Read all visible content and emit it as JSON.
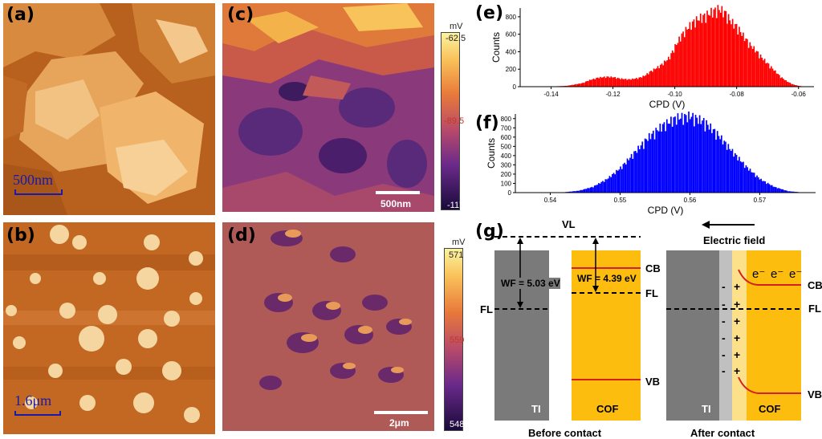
{
  "panels": {
    "a": {
      "label": "(a)",
      "scale": "500nm"
    },
    "b": {
      "label": "(b)",
      "scale": "1.6μm"
    },
    "c": {
      "label": "(c)",
      "scale": "500nm",
      "unit": "mV",
      "cb_top": "-62.5",
      "cb_mid": "-89.5",
      "cb_bot": "-117"
    },
    "d": {
      "label": "(d)",
      "scale": "2μm",
      "unit": "mV",
      "cb_top": "571",
      "cb_mid": "559",
      "cb_bot": "548"
    },
    "e": {
      "label": "(e)"
    },
    "f": {
      "label": "(f)"
    },
    "g": {
      "label": "(g)"
    }
  },
  "chart_data": [
    {
      "type": "bar",
      "panel": "e",
      "color": "#ff0000",
      "xlabel": "CPD (V)",
      "ylabel": "Counts",
      "xlim": [
        -0.15,
        -0.055
      ],
      "ylim": [
        0,
        900
      ],
      "xticks": [
        "-0.14",
        "-0.12",
        "-0.10",
        "-0.08",
        "-0.06"
      ],
      "yticks": [
        "0",
        "200",
        "400",
        "600",
        "800"
      ],
      "x": [
        -0.145,
        -0.14,
        -0.135,
        -0.13,
        -0.128,
        -0.125,
        -0.122,
        -0.12,
        -0.118,
        -0.115,
        -0.112,
        -0.11,
        -0.108,
        -0.105,
        -0.102,
        -0.1,
        -0.098,
        -0.096,
        -0.094,
        -0.092,
        -0.09,
        -0.088,
        -0.086,
        -0.084,
        -0.082,
        -0.08,
        -0.078,
        -0.076,
        -0.074,
        -0.072,
        -0.07,
        -0.068,
        -0.066,
        -0.064,
        -0.062,
        -0.06,
        -0.058
      ],
      "values": [
        0,
        2,
        10,
        40,
        70,
        100,
        110,
        105,
        90,
        80,
        95,
        120,
        170,
        230,
        320,
        450,
        570,
        650,
        720,
        760,
        790,
        830,
        860,
        820,
        720,
        660,
        560,
        470,
        400,
        320,
        250,
        180,
        110,
        60,
        25,
        8,
        2
      ]
    },
    {
      "type": "bar",
      "panel": "f",
      "color": "#0000ff",
      "xlabel": "CPD (V)",
      "ylabel": "Counts",
      "xlim": [
        0.535,
        0.578
      ],
      "ylim": [
        0,
        850
      ],
      "xticks": [
        "0.54",
        "0.55",
        "0.56",
        "0.57"
      ],
      "yticks": [
        "0",
        "100",
        "200",
        "300",
        "400",
        "500",
        "600",
        "700",
        "800"
      ],
      "x": [
        0.54,
        0.542,
        0.544,
        0.546,
        0.548,
        0.55,
        0.552,
        0.554,
        0.556,
        0.558,
        0.56,
        0.562,
        0.564,
        0.566,
        0.568,
        0.57,
        0.572,
        0.574,
        0.576
      ],
      "values": [
        0,
        5,
        20,
        60,
        140,
        260,
        420,
        580,
        700,
        780,
        800,
        740,
        600,
        430,
        270,
        140,
        60,
        15,
        2
      ]
    }
  ],
  "band_diagram": {
    "vl": "VL",
    "fl": "FL",
    "cb": "CB",
    "vb": "VB",
    "wf_ti": "WF = 5.03 eV",
    "wf_cof": "WF = 4.39 eV",
    "ti": "TI",
    "cof": "COF",
    "before": "Before contact",
    "after": "After contact",
    "field": "Electric field",
    "electron": "e⁻",
    "minus": "-",
    "plus": "+"
  }
}
